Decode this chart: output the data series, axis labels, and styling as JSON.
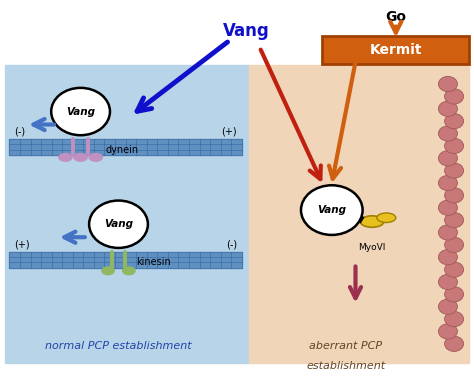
{
  "fig_width": 4.74,
  "fig_height": 3.82,
  "dpi": 100,
  "bg_left_color": "#b8d4e8",
  "bg_right_color": "#f0d5b8",
  "microtubule_color": "#6090c0",
  "microtubule_grid_color": "#3060a0",
  "dynein_color": "#c090c0",
  "kinesin_color": "#90b860",
  "myoVI_color": "#e8c020",
  "vang_circle_color": "#ffffff",
  "vang_border_color": "#000000",
  "kermit_box_color": "#d06010",
  "kermit_text_color": "#ffffff",
  "arrow_blue_color": "#1010cc",
  "arrow_orange_color": "#d06010",
  "arrow_red_color": "#c02010",
  "arrow_blue2_color": "#4472c4",
  "arrow_down_color": "#9b3050",
  "actin_color": "#c87878",
  "normal_label": "normal PCP establishment",
  "aberrant_label1": "aberrant PCP",
  "aberrant_label2": "establishment",
  "go_label": "Go",
  "vang_label": "Vang",
  "kermit_label": "Kermit",
  "dynein_label": "dynein",
  "kinesin_label": "kinesin",
  "myoVI_label": "MyoVI"
}
